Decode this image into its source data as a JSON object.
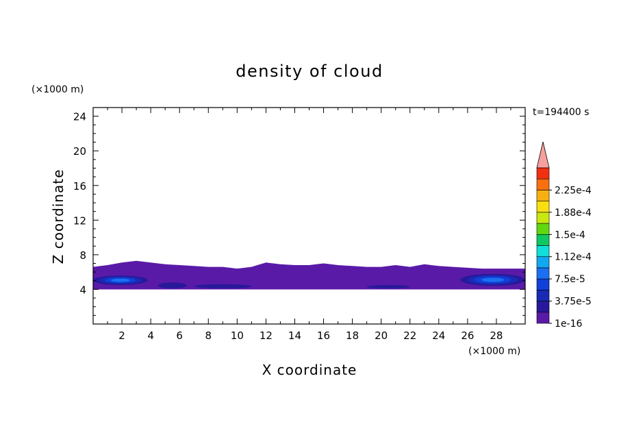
{
  "chart_data": {
    "type": "heatmap",
    "title": "density of cloud",
    "xlabel": "X coordinate",
    "ylabel": "Z coordinate",
    "x_unit": "(×1000 m)",
    "y_unit": "(×1000 m)",
    "time_label": "t=194400 s",
    "xlim": [
      0,
      30
    ],
    "ylim": [
      0,
      25
    ],
    "x_ticks": [
      2,
      4,
      6,
      8,
      10,
      12,
      14,
      16,
      18,
      20,
      22,
      24,
      26,
      28
    ],
    "y_ticks": [
      4,
      8,
      12,
      16,
      20,
      24
    ],
    "colorbar": {
      "levels": [
        1e-16,
        1.875e-05,
        3.75e-05,
        5.625e-05,
        7.5e-05,
        9.375e-05,
        0.0001125,
        0.00013125,
        0.00015,
        0.00016875,
        0.0001875,
        0.00020625,
        0.000225,
        0.00024375
      ],
      "labels": [
        "1e-16",
        "3.75e-5",
        "7.5e-5",
        "1.12e-4",
        "1.5e-4",
        "1.88e-4",
        "2.25e-4"
      ],
      "colors": [
        "#5a1aa8",
        "#28189a",
        "#1a2ab4",
        "#1040d8",
        "#1a70f0",
        "#10a8f0",
        "#10e0d8",
        "#10c860",
        "#60d810",
        "#c8e810",
        "#f8e010",
        "#f8b010",
        "#f87010",
        "#f03010"
      ],
      "extend_color": "#f8a0a0"
    },
    "cloud_layer": {
      "z_bottom": 4.0,
      "z_top_profile": [
        [
          0,
          6.6
        ],
        [
          1,
          6.8
        ],
        [
          2,
          7.1
        ],
        [
          3,
          7.3
        ],
        [
          4,
          7.1
        ],
        [
          5,
          6.9
        ],
        [
          6,
          6.8
        ],
        [
          7,
          6.7
        ],
        [
          8,
          6.6
        ],
        [
          9,
          6.6
        ],
        [
          10,
          6.4
        ],
        [
          11,
          6.6
        ],
        [
          12,
          7.1
        ],
        [
          13,
          6.9
        ],
        [
          14,
          6.8
        ],
        [
          15,
          6.8
        ],
        [
          16,
          7.0
        ],
        [
          17,
          6.8
        ],
        [
          18,
          6.7
        ],
        [
          19,
          6.6
        ],
        [
          20,
          6.6
        ],
        [
          21,
          6.8
        ],
        [
          22,
          6.6
        ],
        [
          23,
          6.9
        ],
        [
          24,
          6.7
        ],
        [
          25,
          6.6
        ],
        [
          26,
          6.5
        ],
        [
          27,
          6.4
        ],
        [
          28,
          6.4
        ],
        [
          29,
          6.4
        ],
        [
          30,
          6.4
        ]
      ],
      "core_regions": [
        {
          "x": [
            0,
            3.8
          ],
          "z": [
            4.5,
            5.6
          ],
          "peak": 9e-05
        },
        {
          "x": [
            25.5,
            30
          ],
          "z": [
            4.4,
            5.8
          ],
          "peak": 9e-05
        },
        {
          "x": [
            4.5,
            6.5
          ],
          "z": [
            4.1,
            4.8
          ],
          "peak": 3e-05
        },
        {
          "x": [
            7,
            11
          ],
          "z": [
            4.1,
            4.6
          ],
          "peak": 3e-05
        },
        {
          "x": [
            19,
            22
          ],
          "z": [
            4.1,
            4.5
          ],
          "peak": 3e-05
        }
      ]
    }
  }
}
